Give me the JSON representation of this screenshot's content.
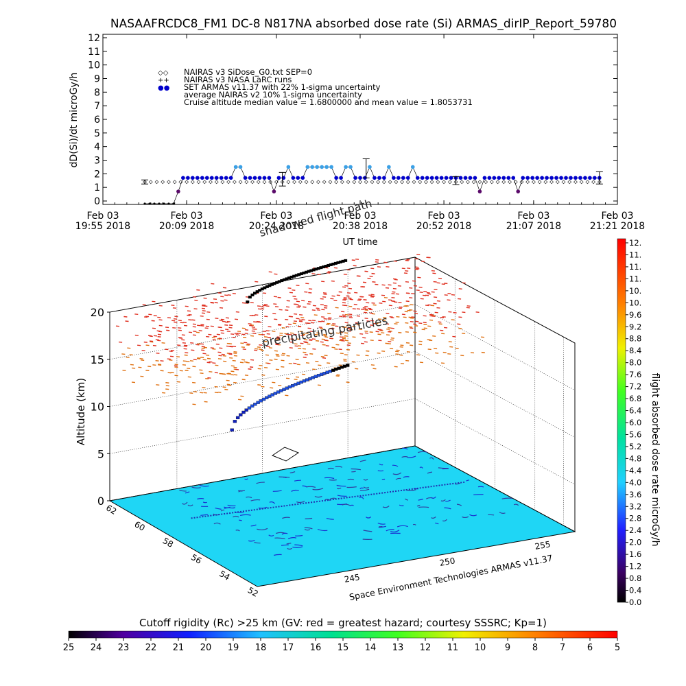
{
  "chart_data": [
    {
      "type": "scatter",
      "title": "NASAAFRCDC8_FM1 DC-8   N817NA absorbed dose rate (Si) ARMAS_dirIP_Report_59780",
      "ylabel": "dD(Si)/dt microGy/h",
      "xlabel": "UT time",
      "ylim": [
        0,
        12
      ],
      "y_ticks": [
        "0",
        "1",
        "2",
        "3",
        "4",
        "5",
        "6",
        "7",
        "8",
        "9",
        "10",
        "11",
        "12"
      ],
      "x_ticks": [
        {
          "line1": "Feb 03",
          "line2": "19:55 2018"
        },
        {
          "line1": "Feb 03",
          "line2": "20:09 2018"
        },
        {
          "line1": "Feb 03",
          "line2": "20:24 2018"
        },
        {
          "line1": "Feb 03",
          "line2": "20:38 2018"
        },
        {
          "line1": "Feb 03",
          "line2": "20:52 2018"
        },
        {
          "line1": "Feb 03",
          "line2": "21:07 2018"
        },
        {
          "line1": "Feb 03",
          "line2": "21:21 2018"
        }
      ],
      "x_tick_minutes": [
        1195,
        1209,
        1224,
        1238,
        1252,
        1267,
        1281
      ],
      "legend": [
        {
          "symbol": "◇◇",
          "label": "NAIRAS v3 SiDose_G0.txt SEP=0"
        },
        {
          "symbol": "++",
          "label": "NAIRAS v3 NASA LaRC runs"
        },
        {
          "symbol": "●●",
          "label": "SET ARMAS v11.37 with 22% 1-sigma uncertainty"
        },
        {
          "symbol": "",
          "label": "average NAIRAS v2 10% 1-sigma uncertainty"
        },
        {
          "symbol": "",
          "label": "Cruise altitude median value = 1.6800000 and mean value = 1.8053731"
        }
      ],
      "series": [
        {
          "name": "NAIRAS v3 SiDose_G0.txt SEP=0",
          "marker": "diamond",
          "x": [
            1202,
            1203,
            1204,
            1205,
            1206,
            1207,
            1208,
            1209,
            1210,
            1211,
            1212,
            1213,
            1214,
            1215,
            1216,
            1217,
            1218,
            1219,
            1220,
            1221,
            1222,
            1223,
            1224,
            1225,
            1226,
            1227,
            1228,
            1229,
            1230,
            1231,
            1232,
            1233,
            1234,
            1235,
            1236,
            1237,
            1238,
            1239,
            1240,
            1241,
            1242,
            1243,
            1244,
            1245,
            1246,
            1247,
            1248,
            1249,
            1250,
            1251,
            1252,
            1253,
            1254,
            1255,
            1256,
            1257,
            1258,
            1259,
            1260,
            1261,
            1262,
            1263,
            1264,
            1265,
            1266,
            1267,
            1268,
            1269,
            1270,
            1271,
            1272,
            1273,
            1274,
            1275,
            1276,
            1277,
            1278
          ],
          "y": [
            1.4,
            1.4,
            1.4,
            1.4,
            1.4,
            1.4,
            1.4,
            1.4,
            1.4,
            1.4,
            1.4,
            1.4,
            1.4,
            1.4,
            1.4,
            1.4,
            1.4,
            1.4,
            1.4,
            1.4,
            1.4,
            1.4,
            1.4,
            1.4,
            1.4,
            1.4,
            1.4,
            1.4,
            1.4,
            1.4,
            1.4,
            1.4,
            1.4,
            1.4,
            1.4,
            1.4,
            1.4,
            1.4,
            1.4,
            1.4,
            1.4,
            1.4,
            1.4,
            1.4,
            1.4,
            1.4,
            1.4,
            1.4,
            1.4,
            1.4,
            1.4,
            1.4,
            1.4,
            1.4,
            1.4,
            1.4,
            1.4,
            1.4,
            1.4,
            1.4,
            1.4,
            1.4,
            1.4,
            1.4,
            1.4,
            1.4,
            1.4,
            1.4,
            1.4,
            1.4,
            1.4,
            1.4,
            1.4,
            1.4,
            1.4,
            1.4,
            1.4
          ]
        },
        {
          "name": "SET ARMAS v11.37 with 22% 1-sigma uncertainty",
          "marker": "dot",
          "x": [
            1202.0,
            1202.8,
            1203.6,
            1204.4,
            1205.2,
            1206.0,
            1206.8,
            1207.6,
            1208.4,
            1209.2,
            1210.0,
            1210.8,
            1211.6,
            1212.4,
            1213.2,
            1214.0,
            1214.8,
            1215.6,
            1216.4,
            1217.2,
            1218.0,
            1218.8,
            1219.6,
            1220.4,
            1221.2,
            1222.0,
            1222.8,
            1223.6,
            1224.4,
            1225.2,
            1226.0,
            1226.8,
            1227.6,
            1228.4,
            1229.2,
            1230.0,
            1230.8,
            1231.6,
            1232.4,
            1233.2,
            1234.0,
            1234.8,
            1235.6,
            1236.4,
            1237.2,
            1238.0,
            1238.8,
            1239.6,
            1240.4,
            1241.2,
            1242.0,
            1242.8,
            1243.6,
            1244.4,
            1245.2,
            1246.0,
            1246.8,
            1247.6,
            1248.4,
            1249.2,
            1250.0,
            1250.8,
            1251.6,
            1252.4,
            1253.2,
            1254.0,
            1254.8,
            1255.6,
            1256.4,
            1257.2,
            1258.0,
            1258.8,
            1259.6,
            1260.4,
            1261.2,
            1262.0,
            1262.8,
            1263.6,
            1264.4,
            1265.2,
            1266.0,
            1266.8,
            1267.6,
            1268.4,
            1269.2,
            1270.0,
            1270.8,
            1271.6,
            1272.4,
            1273.2,
            1274.0,
            1274.8,
            1275.6,
            1276.4,
            1277.2,
            1278.0
          ],
          "y": [
            -0.2,
            -0.2,
            -0.2,
            -0.2,
            -0.2,
            -0.2,
            -0.2,
            0.7,
            1.7,
            1.7,
            1.7,
            1.7,
            1.7,
            1.7,
            1.7,
            1.7,
            1.7,
            1.7,
            1.7,
            2.5,
            2.5,
            1.7,
            1.7,
            1.7,
            1.7,
            1.7,
            1.7,
            0.7,
            1.7,
            1.7,
            2.5,
            1.7,
            1.7,
            1.7,
            2.5,
            2.5,
            2.5,
            2.5,
            2.5,
            2.5,
            1.7,
            1.7,
            2.5,
            2.5,
            1.7,
            1.7,
            1.7,
            2.5,
            1.7,
            1.7,
            1.7,
            2.5,
            1.7,
            1.7,
            1.7,
            1.7,
            2.5,
            1.7,
            1.7,
            1.7,
            1.7,
            1.7,
            1.7,
            1.7,
            1.7,
            1.7,
            1.7,
            1.7,
            1.7,
            1.7,
            0.7,
            1.7,
            1.7,
            1.7,
            1.7,
            1.7,
            1.7,
            1.7,
            0.7,
            1.7,
            1.7,
            1.7,
            1.7,
            1.7,
            1.7,
            1.7,
            1.7,
            1.7,
            1.7,
            1.7,
            1.7,
            1.7,
            1.7,
            1.7,
            1.7,
            1.7
          ]
        }
      ],
      "error_bars": [
        {
          "x": 1202,
          "y": 1.4,
          "err": 0.15
        },
        {
          "x": 1225,
          "y": 1.6,
          "err": 0.5
        },
        {
          "x": 1239,
          "y": 2.4,
          "err": 0.7
        },
        {
          "x": 1254,
          "y": 1.5,
          "err": 0.3
        },
        {
          "x": 1278,
          "y": 1.7,
          "err": 0.45
        }
      ]
    },
    {
      "type": "scatter",
      "ylabel": "Altitude (km)",
      "z_ticks": [
        "0",
        "5",
        "10",
        "15",
        "20"
      ],
      "lat_ticks": [
        "62",
        "60",
        "58",
        "56",
        "54",
        "52"
      ],
      "lon_ticks": [
        "245",
        "250",
        "255"
      ],
      "annotations": [
        "shadowed flight path",
        "precipitating particles",
        "Space Environment Technologies ARMAS v11.37"
      ]
    },
    {
      "type": "heatmap",
      "name": "dose-rate-colorbar",
      "ylabel": "flight absorbed dose rate microGy/h",
      "ticks": [
        "0.0",
        "0.4",
        "0.8",
        "1.2",
        "1.6",
        "2.0",
        "2.4",
        "2.8",
        "3.2",
        "3.6",
        "4.0",
        "4.4",
        "4.8",
        "5.2",
        "5.6",
        "6.0",
        "6.4",
        "6.8",
        "7.2",
        "7.6",
        "8.0",
        "8.4",
        "8.8",
        "9.2",
        "9.6",
        "10.",
        "10.",
        "11.",
        "11.",
        "11.",
        "12."
      ]
    },
    {
      "type": "heatmap",
      "name": "cutoff-rigidity-colorbar",
      "title": "Cutoff rigidity (Rc) >25 km (GV: red = greatest hazard; courtesy SSSRC; Kp=1)",
      "ticks": [
        "25",
        "24",
        "23",
        "22",
        "21",
        "20",
        "19",
        "18",
        "17",
        "16",
        "15",
        "14",
        "13",
        "12",
        "11",
        "10",
        "9",
        "8",
        "7",
        "6",
        "5"
      ]
    }
  ],
  "colors": {
    "nairas_v3": "#000000",
    "armas_low": "#0000cc",
    "armas_mid": "#3aa0e6",
    "armas_dark": "#5a0a6a",
    "map_surface": "#1fd6f5",
    "precip_red": "#e03020",
    "precip_orange": "#e07010"
  }
}
